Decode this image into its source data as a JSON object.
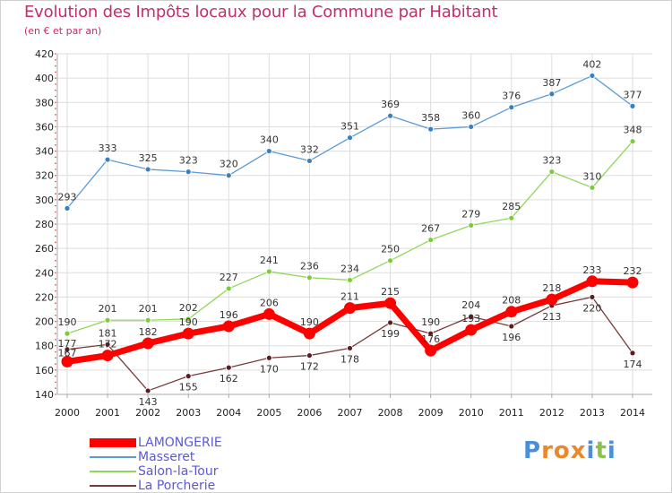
{
  "title": "Evolution des Impôts locaux pour la Commune par Habitant",
  "subtitle": "(en € et par an)",
  "logo_text": "Proxiti",
  "chart_data": {
    "type": "line",
    "title": "Evolution des Impôts locaux pour la Commune par Habitant",
    "subtitle": "(en € et par an)",
    "xlabel": "",
    "ylabel": "",
    "categories": [
      "2000",
      "2001",
      "2002",
      "2003",
      "2004",
      "2005",
      "2006",
      "2007",
      "2008",
      "2009",
      "2010",
      "2011",
      "2012",
      "2013",
      "2014"
    ],
    "ylim": [
      140,
      420
    ],
    "yticks": [
      140,
      160,
      180,
      200,
      220,
      240,
      260,
      280,
      300,
      320,
      340,
      360,
      380,
      400,
      420
    ],
    "grid": true,
    "legend_position": "bottom-left",
    "series": [
      {
        "name": "LAMONGERIE",
        "color": "#ff0000",
        "marker_color": "#ff0000",
        "values": [
          167,
          172,
          182,
          190,
          196,
          206,
          190,
          211,
          215,
          176,
          193,
          208,
          218,
          233,
          232
        ]
      },
      {
        "name": "Masseret",
        "color": "#5b9bd5",
        "marker_color": "#3a7fc1",
        "values": [
          293,
          333,
          325,
          323,
          320,
          340,
          332,
          351,
          369,
          358,
          360,
          376,
          387,
          402,
          377
        ]
      },
      {
        "name": "Salon-la-Tour",
        "color": "#8fd85a",
        "marker_color": "#7ccc3a",
        "values": [
          190,
          201,
          201,
          202,
          227,
          241,
          236,
          234,
          250,
          267,
          279,
          285,
          323,
          310,
          348
        ]
      },
      {
        "name": "La Porcherie",
        "color": "#7a3a3a",
        "marker_color": "#5a1e1e",
        "values": [
          177,
          181,
          143,
          155,
          162,
          170,
          172,
          178,
          199,
          190,
          204,
          196,
          213,
          220,
          174
        ]
      }
    ]
  },
  "logo_colors": [
    "#4a90d9",
    "#e8892c",
    "#e8892c",
    "#e8892c",
    "#4a90d9",
    "#8bc34a",
    "#4a90d9"
  ],
  "background": "#ffffff",
  "grid_color": "#dddddd",
  "title_color": "#c0306a",
  "legend_label_color": "#5a5ad8"
}
